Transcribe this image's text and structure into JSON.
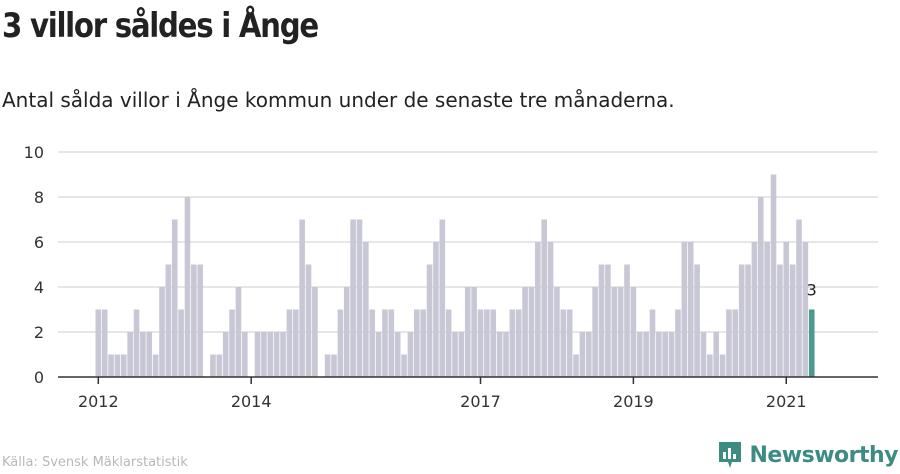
{
  "header": {
    "title": "3 villor såldes i Ånge",
    "subtitle": "Antal sålda villor i Ånge kommun under de senaste tre månaderna."
  },
  "footer": {
    "source": "Källa: Svensk Mäklarstatistik",
    "brand": "Newsworthy"
  },
  "colors": {
    "bar": "#c8c7d5",
    "highlight": "#4a9a8e",
    "grid": "#dddddd",
    "brand": "#3d8c84"
  },
  "chart_data": {
    "type": "bar",
    "start": "2012-01",
    "values": [
      3,
      3,
      1,
      1,
      1,
      2,
      3,
      2,
      2,
      1,
      4,
      5,
      7,
      3,
      8,
      5,
      5,
      0,
      1,
      1,
      2,
      3,
      4,
      2,
      0,
      2,
      2,
      2,
      2,
      2,
      3,
      3,
      7,
      5,
      4,
      0,
      1,
      1,
      3,
      4,
      7,
      7,
      6,
      3,
      2,
      3,
      3,
      2,
      1,
      2,
      3,
      3,
      5,
      6,
      7,
      3,
      2,
      2,
      4,
      4,
      3,
      3,
      3,
      2,
      2,
      3,
      3,
      4,
      4,
      6,
      7,
      6,
      4,
      3,
      3,
      1,
      2,
      2,
      4,
      5,
      5,
      4,
      4,
      5,
      4,
      2,
      2,
      3,
      2,
      2,
      2,
      3,
      6,
      6,
      5,
      2,
      1,
      2,
      1,
      3,
      3,
      5,
      5,
      6,
      8,
      6,
      9,
      5,
      6,
      5,
      7,
      6,
      3
    ],
    "highlight_label": "3",
    "ylim": [
      0,
      10
    ],
    "yticks": [
      0,
      2,
      4,
      6,
      8,
      10
    ],
    "xticks": [
      "2012",
      "2014",
      "2017",
      "2019",
      "2021"
    ],
    "grid": true
  }
}
